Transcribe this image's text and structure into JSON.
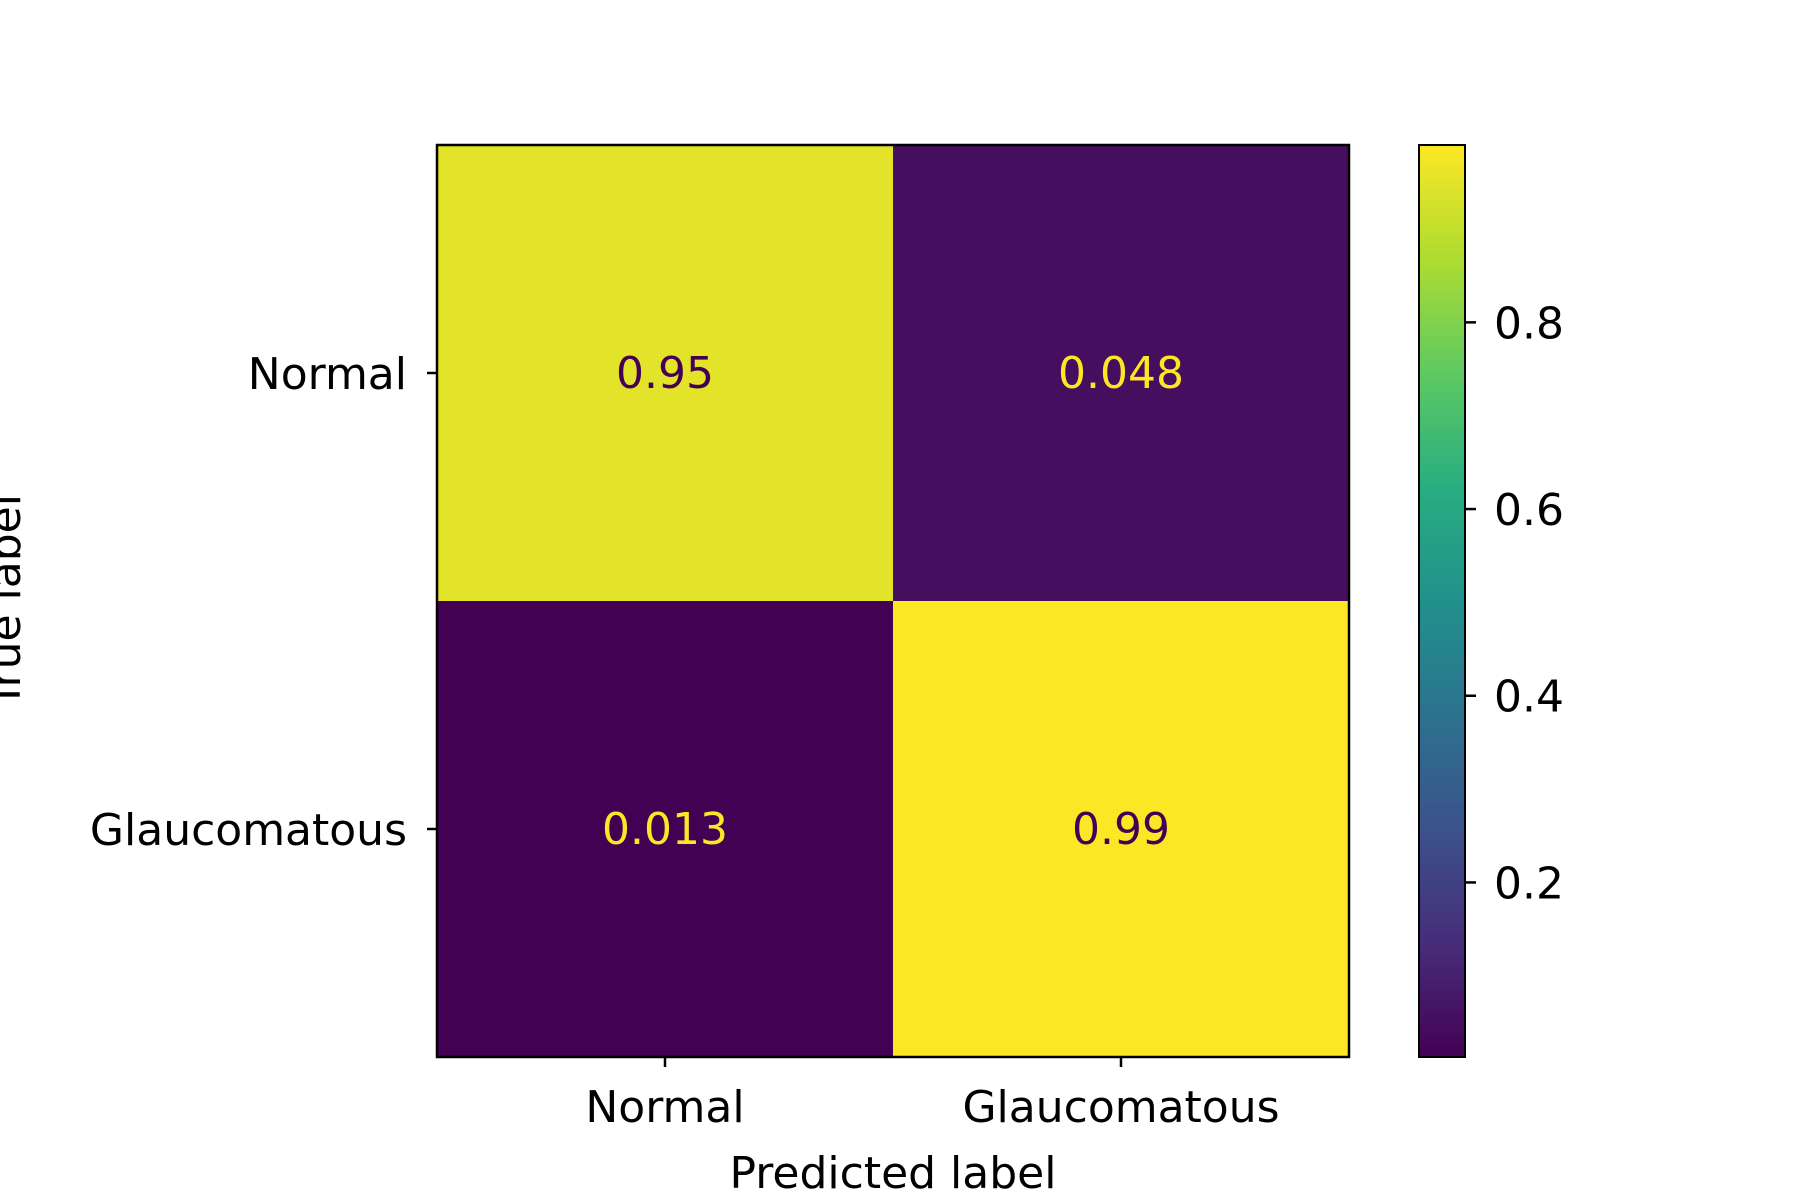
{
  "chart_data": {
    "type": "heatmap",
    "title": "",
    "xlabel": "Predicted label",
    "ylabel": "True label",
    "x_categories": [
      "Normal",
      "Glaucomatous"
    ],
    "y_categories": [
      "Normal",
      "Glaucomatous"
    ],
    "values": [
      [
        0.95,
        0.048
      ],
      [
        0.013,
        0.99
      ]
    ],
    "cell_labels": [
      [
        "0.95",
        "0.048"
      ],
      [
        "0.013",
        "0.99"
      ]
    ],
    "colormap": "viridis",
    "colorbar": {
      "range": [
        0.013,
        0.99
      ],
      "ticks": [
        0.2,
        0.4,
        0.6,
        0.8
      ],
      "tick_labels": [
        "0.2",
        "0.4",
        "0.6",
        "0.8"
      ]
    },
    "label_colors": {
      "on_light": "#440154",
      "on_dark": "#fde725"
    },
    "grid": false,
    "legend": "colorbar-right"
  }
}
